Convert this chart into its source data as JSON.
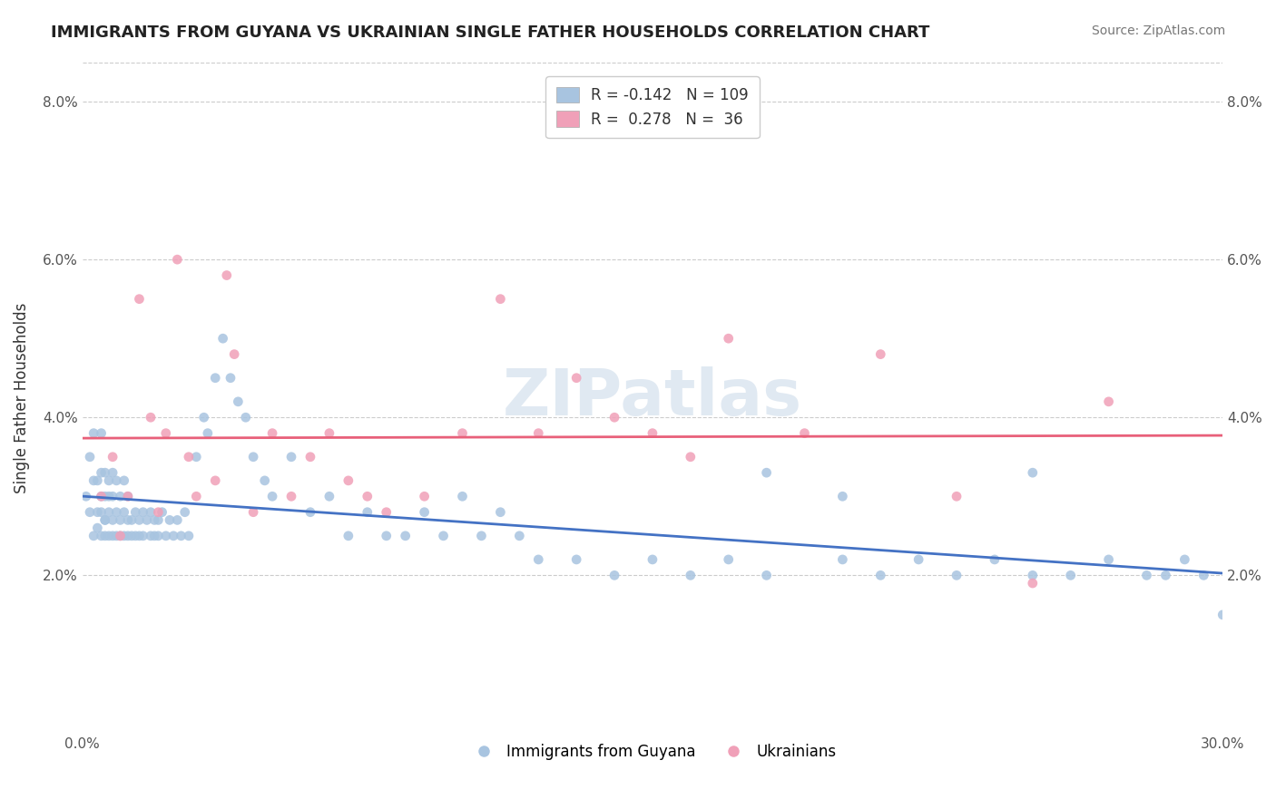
{
  "title": "IMMIGRANTS FROM GUYANA VS UKRAINIAN SINGLE FATHER HOUSEHOLDS CORRELATION CHART",
  "source": "Source: ZipAtlas.com",
  "xlabel": "",
  "ylabel": "Single Father Households",
  "xlim": [
    0.0,
    0.3
  ],
  "ylim": [
    0.0,
    0.085
  ],
  "xticks": [
    0.0,
    0.05,
    0.1,
    0.15,
    0.2,
    0.25,
    0.3
  ],
  "xticklabels": [
    "0.0%",
    "",
    "",
    "",
    "",
    "",
    "30.0%"
  ],
  "yticks": [
    0.0,
    0.02,
    0.04,
    0.06,
    0.08
  ],
  "yticklabels": [
    "",
    "2.0%",
    "4.0%",
    "6.0%",
    "8.0%"
  ],
  "legend_label1": "Immigrants from Guyana",
  "legend_label2": "Ukrainians",
  "r1": "-0.142",
  "n1": "109",
  "r2": "0.278",
  "n2": "36",
  "color_blue": "#a8c4e0",
  "color_pink": "#f0a0b8",
  "line_color_blue": "#4472c4",
  "line_color_pink": "#e8607a",
  "watermark": "ZIPatlas",
  "blue_points_x": [
    0.001,
    0.002,
    0.002,
    0.003,
    0.003,
    0.003,
    0.004,
    0.004,
    0.004,
    0.005,
    0.005,
    0.005,
    0.005,
    0.005,
    0.006,
    0.006,
    0.006,
    0.006,
    0.006,
    0.007,
    0.007,
    0.007,
    0.007,
    0.008,
    0.008,
    0.008,
    0.008,
    0.009,
    0.009,
    0.009,
    0.01,
    0.01,
    0.01,
    0.011,
    0.011,
    0.011,
    0.012,
    0.012,
    0.012,
    0.013,
    0.013,
    0.014,
    0.014,
    0.015,
    0.015,
    0.016,
    0.016,
    0.017,
    0.018,
    0.018,
    0.019,
    0.019,
    0.02,
    0.02,
    0.021,
    0.022,
    0.023,
    0.024,
    0.025,
    0.026,
    0.027,
    0.028,
    0.03,
    0.032,
    0.033,
    0.035,
    0.037,
    0.039,
    0.041,
    0.043,
    0.045,
    0.048,
    0.05,
    0.055,
    0.06,
    0.065,
    0.07,
    0.075,
    0.08,
    0.085,
    0.09,
    0.095,
    0.1,
    0.105,
    0.11,
    0.115,
    0.12,
    0.13,
    0.14,
    0.15,
    0.16,
    0.17,
    0.18,
    0.2,
    0.21,
    0.22,
    0.23,
    0.24,
    0.25,
    0.26,
    0.27,
    0.28,
    0.285,
    0.29,
    0.295,
    0.3,
    0.25,
    0.2,
    0.18
  ],
  "blue_points_y": [
    0.03,
    0.035,
    0.028,
    0.032,
    0.025,
    0.038,
    0.028,
    0.032,
    0.026,
    0.03,
    0.028,
    0.033,
    0.025,
    0.038,
    0.027,
    0.03,
    0.025,
    0.033,
    0.027,
    0.028,
    0.03,
    0.025,
    0.032,
    0.027,
    0.03,
    0.025,
    0.033,
    0.028,
    0.025,
    0.032,
    0.027,
    0.03,
    0.025,
    0.028,
    0.025,
    0.032,
    0.027,
    0.025,
    0.03,
    0.025,
    0.027,
    0.028,
    0.025,
    0.027,
    0.025,
    0.028,
    0.025,
    0.027,
    0.025,
    0.028,
    0.025,
    0.027,
    0.025,
    0.027,
    0.028,
    0.025,
    0.027,
    0.025,
    0.027,
    0.025,
    0.028,
    0.025,
    0.035,
    0.04,
    0.038,
    0.045,
    0.05,
    0.045,
    0.042,
    0.04,
    0.035,
    0.032,
    0.03,
    0.035,
    0.028,
    0.03,
    0.025,
    0.028,
    0.025,
    0.025,
    0.028,
    0.025,
    0.03,
    0.025,
    0.028,
    0.025,
    0.022,
    0.022,
    0.02,
    0.022,
    0.02,
    0.022,
    0.02,
    0.022,
    0.02,
    0.022,
    0.02,
    0.022,
    0.02,
    0.02,
    0.022,
    0.02,
    0.02,
    0.022,
    0.02,
    0.015,
    0.033,
    0.03,
    0.033
  ],
  "pink_points_x": [
    0.005,
    0.008,
    0.01,
    0.012,
    0.015,
    0.018,
    0.02,
    0.022,
    0.025,
    0.028,
    0.03,
    0.035,
    0.038,
    0.04,
    0.045,
    0.05,
    0.055,
    0.06,
    0.065,
    0.07,
    0.075,
    0.08,
    0.09,
    0.1,
    0.11,
    0.12,
    0.13,
    0.14,
    0.15,
    0.16,
    0.17,
    0.19,
    0.21,
    0.23,
    0.25,
    0.27
  ],
  "pink_points_y": [
    0.03,
    0.035,
    0.025,
    0.03,
    0.055,
    0.04,
    0.028,
    0.038,
    0.06,
    0.035,
    0.03,
    0.032,
    0.058,
    0.048,
    0.028,
    0.038,
    0.03,
    0.035,
    0.038,
    0.032,
    0.03,
    0.028,
    0.03,
    0.038,
    0.055,
    0.038,
    0.045,
    0.04,
    0.038,
    0.035,
    0.05,
    0.038,
    0.048,
    0.03,
    0.019,
    0.042
  ]
}
